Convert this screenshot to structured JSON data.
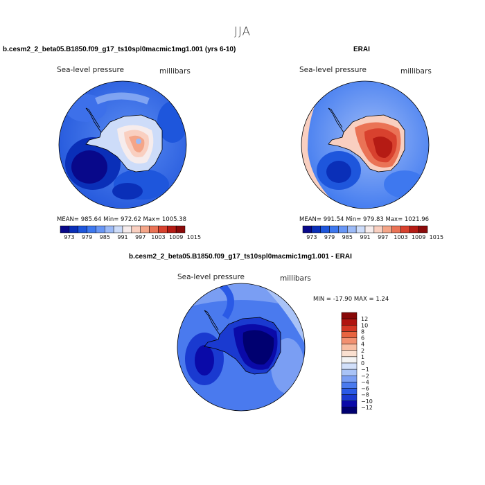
{
  "season": "JJA",
  "colors": {
    "abs_scale": [
      "#08088a",
      "#0a2fb8",
      "#1e56dc",
      "#3e78ef",
      "#6896f5",
      "#9cbaf7",
      "#cddcf9",
      "#f6ecec",
      "#f9cfc0",
      "#f4a588",
      "#ea7356",
      "#d8412e",
      "#b51b14",
      "#8a0a0a"
    ],
    "diff_scale": [
      "#000070",
      "#0a0aa8",
      "#1a3ad0",
      "#2a5ae6",
      "#4a7aee",
      "#7a9ef3",
      "#a9c3f7",
      "#d2e0fa",
      "#f3f3f3",
      "#fae0d0",
      "#f8bea3",
      "#f29070",
      "#e86440",
      "#d43624",
      "#b01410",
      "#880808"
    ],
    "coast": "#000000"
  },
  "chart_data": [
    {
      "type": "heatmap",
      "title": "b.cesm2_2_beta05.B1850.f09_g17_ts10spl0macmic1mg1.001 (yrs 6-10)",
      "variable": "Sea-level pressure",
      "units": "millibars",
      "stats_text": "MEAN= 985.64   Min= 972.62   Max= 1005.38",
      "stats": {
        "mean": 985.64,
        "min": 972.62,
        "max": 1005.38
      },
      "colorbar_labels": [
        "973",
        "979",
        "985",
        "991",
        "997",
        "1003",
        "1009",
        "1015"
      ],
      "colorbar_levels": [
        970,
        973,
        976,
        979,
        982,
        985,
        988,
        991,
        994,
        997,
        1000,
        1003,
        1006,
        1009,
        1012,
        1015
      ]
    },
    {
      "type": "heatmap",
      "title": "ERAI",
      "variable": "Sea-level pressure",
      "units": "millibars",
      "stats_text": "MEAN= 991.54   Min= 979.83   Max= 1021.96",
      "stats": {
        "mean": 991.54,
        "min": 979.83,
        "max": 1021.96
      },
      "colorbar_labels": [
        "973",
        "979",
        "985",
        "991",
        "997",
        "1003",
        "1009",
        "1015"
      ],
      "colorbar_levels": [
        970,
        973,
        976,
        979,
        982,
        985,
        988,
        991,
        994,
        997,
        1000,
        1003,
        1006,
        1009,
        1012,
        1015
      ]
    },
    {
      "type": "heatmap",
      "title": "b.cesm2_2_beta05.B1850.f09_g17_ts10spl0macmic1mg1.001 - ERAI",
      "variable": "Sea-level pressure",
      "units": "millibars",
      "stats_text": "MIN = -17.90  MAX =    1.24",
      "stats": {
        "min": -17.9,
        "max": 1.24
      },
      "colorbar_labels": [
        "12",
        "10",
        "8",
        "6",
        "4",
        "2",
        "1",
        "0",
        "−1",
        "−2",
        "−4",
        "−6",
        "−8",
        "−10",
        "−12"
      ],
      "colorbar_levels": [
        12,
        10,
        8,
        6,
        4,
        2,
        1,
        0,
        -1,
        -2,
        -4,
        -6,
        -8,
        -10,
        -12
      ]
    }
  ]
}
